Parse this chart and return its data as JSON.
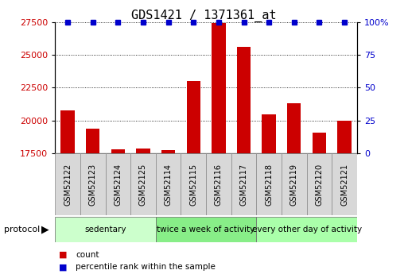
{
  "title": "GDS1421 / 1371361_at",
  "samples": [
    "GSM52122",
    "GSM52123",
    "GSM52124",
    "GSM52125",
    "GSM52114",
    "GSM52115",
    "GSM52116",
    "GSM52117",
    "GSM52118",
    "GSM52119",
    "GSM52120",
    "GSM52121"
  ],
  "counts": [
    20800,
    19400,
    17800,
    17900,
    17750,
    23000,
    27400,
    25600,
    20500,
    21300,
    19100,
    20000
  ],
  "ylim_left": [
    17500,
    27500
  ],
  "ylim_right": [
    0,
    100
  ],
  "yticks_left": [
    17500,
    20000,
    22500,
    25000,
    27500
  ],
  "yticks_right": [
    0,
    25,
    50,
    75,
    100
  ],
  "bar_color": "#cc0000",
  "dot_color": "#0000cc",
  "bg_color": "#ffffff",
  "groups": [
    {
      "label": "sedentary",
      "start": 0,
      "end": 4,
      "color": "#ccffcc"
    },
    {
      "label": "twice a week of activity",
      "start": 4,
      "end": 8,
      "color": "#88ee88"
    },
    {
      "label": "every other day of activity",
      "start": 8,
      "end": 12,
      "color": "#aaffaa"
    }
  ],
  "protocol_label": "protocol",
  "legend_items": [
    {
      "color": "#cc0000",
      "label": "count"
    },
    {
      "color": "#0000cc",
      "label": "percentile rank within the sample"
    }
  ],
  "title_fontsize": 11,
  "tick_fontsize": 8,
  "sample_fontsize": 7,
  "group_fontsize": 7.5,
  "legend_fontsize": 7.5
}
